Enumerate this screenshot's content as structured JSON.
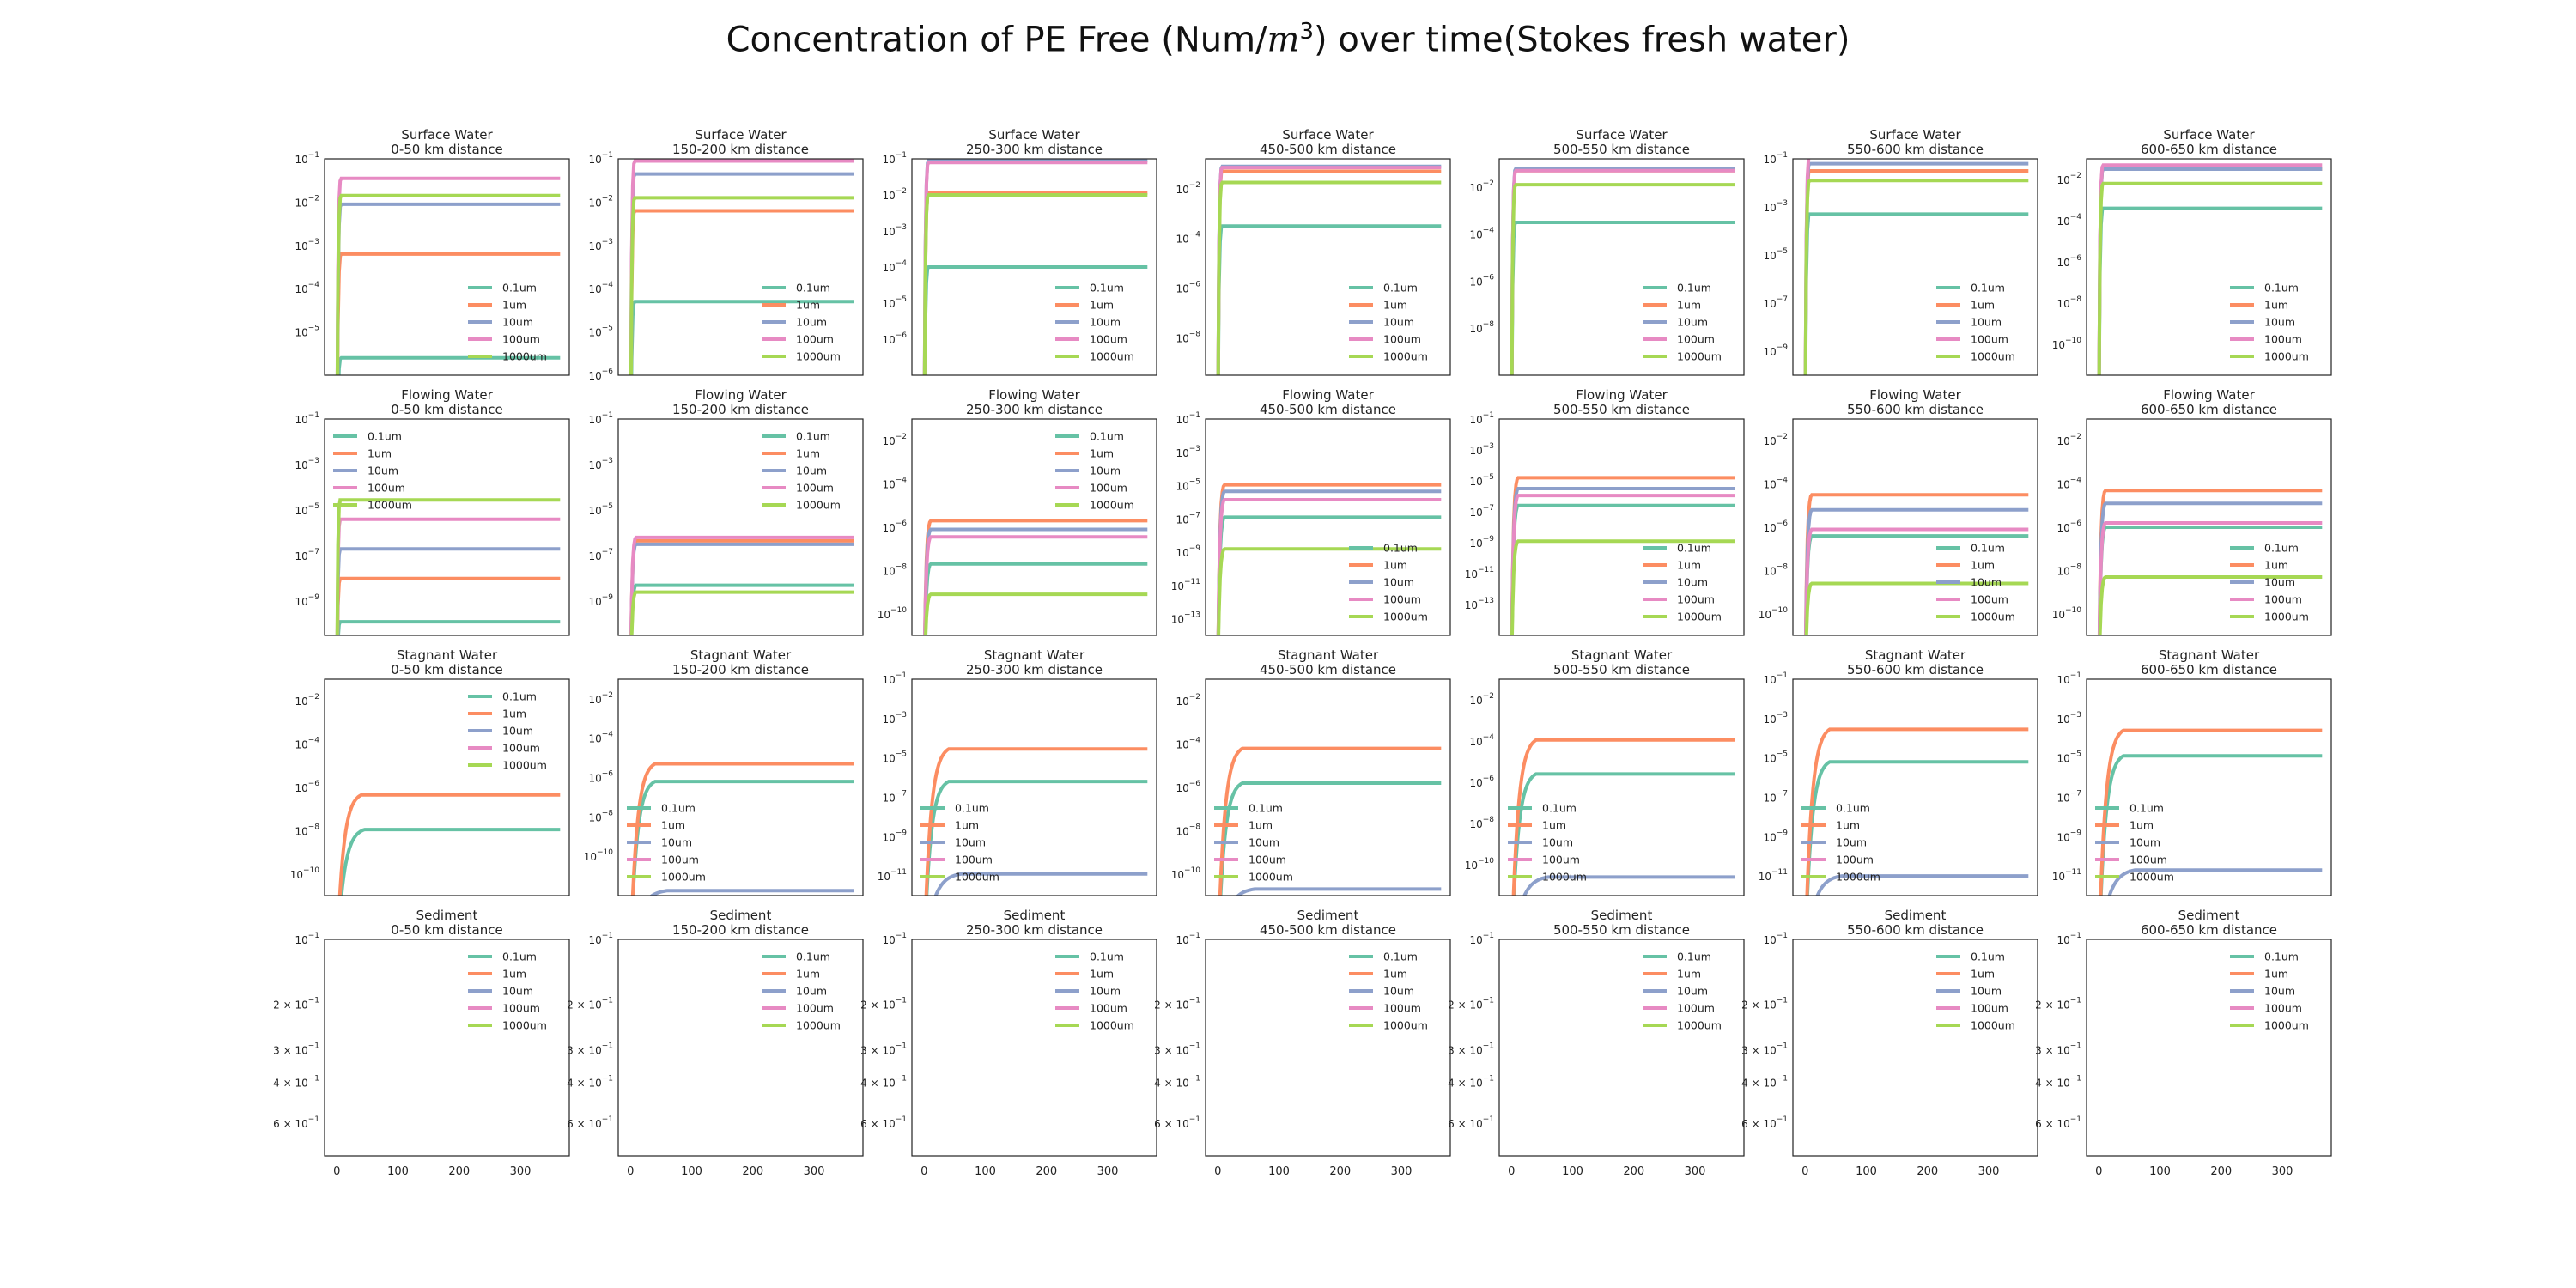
{
  "chart_data": {
    "type": "line",
    "title_prefix": "Concentration of PE Free (Num/",
    "title_unit": "m",
    "title_exp": "3",
    "title_suffix": ") over time(Stokes fresh water)",
    "legend": [
      "0.1um",
      "1um",
      "10um",
      "100um",
      "1000um"
    ],
    "colors": {
      "0.1um": "#66c2a5",
      "1um": "#fc8d62",
      "10um": "#8da0cb",
      "100um": "#e78ac3",
      "1000um": "#a6d854"
    },
    "xlim": [
      -20,
      380
    ],
    "xticks": [
      0,
      100,
      200,
      300
    ],
    "distances": [
      "0-50 km distance",
      "150-200 km distance",
      "250-300 km distance",
      "450-500 km distance",
      "500-550 km distance",
      "550-600 km distance",
      "600-650 km distance"
    ],
    "rows": [
      {
        "compartment": "Surface Water",
        "panels": [
          {
            "ylim": [
              -6,
              -1
            ],
            "yticks": [
              -5,
              -4,
              -3,
              -2,
              -1
            ],
            "legend_loc": "lower-right",
            "series": [
              {
                "name": "0.1um",
                "value": -5.6,
                "rise": 6
              },
              {
                "name": "1um",
                "value": -3.2,
                "rise": 6
              },
              {
                "name": "10um",
                "value": -2.05,
                "rise": 6
              },
              {
                "name": "100um",
                "value": -1.45,
                "rise": 6
              },
              {
                "name": "1000um",
                "value": -1.85,
                "rise": 6
              }
            ]
          },
          {
            "ylim": [
              -6,
              -1
            ],
            "yticks": [
              -6,
              -5,
              -4,
              -3,
              -2,
              -1
            ],
            "legend_loc": "lower-right",
            "series": [
              {
                "name": "0.1um",
                "value": -4.3,
                "rise": 6
              },
              {
                "name": "1um",
                "value": -2.2,
                "rise": 6
              },
              {
                "name": "10um",
                "value": -1.35,
                "rise": 6
              },
              {
                "name": "100um",
                "value": -1.05,
                "rise": 6
              },
              {
                "name": "1000um",
                "value": -1.9,
                "rise": 6
              }
            ]
          },
          {
            "ylim": [
              -7,
              -1
            ],
            "yticks": [
              -6,
              -5,
              -4,
              -3,
              -2,
              -1
            ],
            "legend_loc": "lower-right",
            "series": [
              {
                "name": "0.1um",
                "value": -4.0,
                "rise": 6
              },
              {
                "name": "1um",
                "value": -1.95,
                "rise": 6
              },
              {
                "name": "10um",
                "value": -1.05,
                "rise": 6
              },
              {
                "name": "100um",
                "value": -1.1,
                "rise": 6
              },
              {
                "name": "1000um",
                "value": -2.0,
                "rise": 6
              }
            ]
          },
          {
            "ylim": [
              -9.5,
              -0.8
            ],
            "yticks": [
              -8,
              -6,
              -4,
              -2
            ],
            "legend_loc": "lower-right",
            "series": [
              {
                "name": "0.1um",
                "value": -3.5,
                "rise": 6
              },
              {
                "name": "1um",
                "value": -1.3,
                "rise": 6
              },
              {
                "name": "10um",
                "value": -1.1,
                "rise": 6
              },
              {
                "name": "100um",
                "value": -1.15,
                "rise": 6
              },
              {
                "name": "1000um",
                "value": -1.75,
                "rise": 6
              }
            ]
          },
          {
            "ylim": [
              -10,
              -0.8
            ],
            "yticks": [
              -8,
              -6,
              -4,
              -2
            ],
            "legend_loc": "lower-right",
            "series": [
              {
                "name": "0.1um",
                "value": -3.5,
                "rise": 6
              },
              {
                "name": "1um",
                "value": -1.3,
                "rise": 6
              },
              {
                "name": "10um",
                "value": -1.2,
                "rise": 6
              },
              {
                "name": "100um",
                "value": -1.3,
                "rise": 6
              },
              {
                "name": "1000um",
                "value": -1.9,
                "rise": 6
              }
            ]
          },
          {
            "ylim": [
              -10,
              -1
            ],
            "yticks": [
              -9,
              -7,
              -5,
              -3,
              -1
            ],
            "legend_loc": "lower-right",
            "series": [
              {
                "name": "0.1um",
                "value": -3.3,
                "rise": 6
              },
              {
                "name": "1um",
                "value": -1.5,
                "rise": 6
              },
              {
                "name": "10um",
                "value": -1.2,
                "rise": 6
              },
              {
                "name": "100um",
                "value": -0.9,
                "rise": 6
              },
              {
                "name": "1000um",
                "value": -1.9,
                "rise": 6
              }
            ]
          },
          {
            "ylim": [
              -11.5,
              -1
            ],
            "yticks": [
              -10,
              -8,
              -6,
              -4,
              -2
            ],
            "legend_loc": "lower-right",
            "series": [
              {
                "name": "0.1um",
                "value": -3.4,
                "rise": 6
              },
              {
                "name": "1um",
                "value": -1.5,
                "rise": 6
              },
              {
                "name": "10um",
                "value": -1.5,
                "rise": 6
              },
              {
                "name": "100um",
                "value": -1.3,
                "rise": 6
              },
              {
                "name": "1000um",
                "value": -2.2,
                "rise": 6
              }
            ]
          }
        ]
      },
      {
        "compartment": "Flowing Water",
        "panels": [
          {
            "ylim": [
              -10.5,
              -1
            ],
            "yticks": [
              -9,
              -7,
              -5,
              -3,
              -1
            ],
            "legend_loc": "upper-left",
            "series": [
              {
                "name": "0.1um",
                "value": -9.9,
                "rise": 5
              },
              {
                "name": "1um",
                "value": -8.0,
                "rise": 5
              },
              {
                "name": "10um",
                "value": -6.7,
                "rise": 5
              },
              {
                "name": "100um",
                "value": -5.4,
                "rise": 5
              },
              {
                "name": "1000um",
                "value": -4.55,
                "rise": 5
              }
            ]
          },
          {
            "ylim": [
              -10.5,
              -1
            ],
            "yticks": [
              -9,
              -7,
              -5,
              -3,
              -1
            ],
            "legend_loc": "upper-right",
            "series": [
              {
                "name": "0.1um",
                "value": -8.3,
                "rise": 8
              },
              {
                "name": "1um",
                "value": -6.35,
                "rise": 8
              },
              {
                "name": "10um",
                "value": -6.5,
                "rise": 8
              },
              {
                "name": "100um",
                "value": -6.2,
                "rise": 8
              },
              {
                "name": "1000um",
                "value": -8.6,
                "rise": 8
              }
            ]
          },
          {
            "ylim": [
              -11,
              -1
            ],
            "yticks": [
              -10,
              -8,
              -6,
              -4,
              -2
            ],
            "legend_loc": "upper-right",
            "series": [
              {
                "name": "0.1um",
                "value": -7.7,
                "rise": 10
              },
              {
                "name": "1um",
                "value": -5.7,
                "rise": 10
              },
              {
                "name": "10um",
                "value": -6.1,
                "rise": 10
              },
              {
                "name": "100um",
                "value": -6.45,
                "rise": 10
              },
              {
                "name": "1000um",
                "value": -9.1,
                "rise": 10
              }
            ]
          },
          {
            "ylim": [
              -14,
              -1
            ],
            "yticks": [
              -13,
              -11,
              -9,
              -7,
              -5,
              -3,
              -1
            ],
            "legend_loc": "lower-right",
            "series": [
              {
                "name": "0.1um",
                "value": -6.9,
                "rise": 10
              },
              {
                "name": "1um",
                "value": -4.95,
                "rise": 10
              },
              {
                "name": "10um",
                "value": -5.35,
                "rise": 10
              },
              {
                "name": "100um",
                "value": -5.85,
                "rise": 10
              },
              {
                "name": "1000um",
                "value": -8.8,
                "rise": 10
              }
            ]
          },
          {
            "ylim": [
              -15,
              -1
            ],
            "yticks": [
              -13,
              -11,
              -9,
              -7,
              -5,
              -3,
              -1
            ],
            "legend_loc": "lower-right",
            "series": [
              {
                "name": "0.1um",
                "value": -6.6,
                "rise": 10
              },
              {
                "name": "1um",
                "value": -4.8,
                "rise": 10
              },
              {
                "name": "10um",
                "value": -5.5,
                "rise": 10
              },
              {
                "name": "100um",
                "value": -5.95,
                "rise": 10
              },
              {
                "name": "1000um",
                "value": -8.9,
                "rise": 10
              }
            ]
          },
          {
            "ylim": [
              -11,
              -1
            ],
            "yticks": [
              -10,
              -8,
              -6,
              -4,
              -2
            ],
            "legend_loc": "lower-right",
            "series": [
              {
                "name": "0.1um",
                "value": -6.4,
                "rise": 10
              },
              {
                "name": "1um",
                "value": -4.5,
                "rise": 10
              },
              {
                "name": "10um",
                "value": -5.2,
                "rise": 10
              },
              {
                "name": "100um",
                "value": -6.1,
                "rise": 10
              },
              {
                "name": "1000um",
                "value": -8.6,
                "rise": 10
              }
            ]
          },
          {
            "ylim": [
              -11,
              -1
            ],
            "yticks": [
              -10,
              -8,
              -6,
              -4,
              -2
            ],
            "legend_loc": "lower-right",
            "series": [
              {
                "name": "0.1um",
                "value": -6.0,
                "rise": 10
              },
              {
                "name": "1um",
                "value": -4.3,
                "rise": 10
              },
              {
                "name": "10um",
                "value": -4.9,
                "rise": 10
              },
              {
                "name": "100um",
                "value": -5.8,
                "rise": 10
              },
              {
                "name": "1000um",
                "value": -8.3,
                "rise": 10
              }
            ]
          }
        ]
      },
      {
        "compartment": "Stagnant Water",
        "panels": [
          {
            "ylim": [
              -11,
              -1
            ],
            "yticks": [
              -10,
              -8,
              -6,
              -4,
              -2
            ],
            "legend_loc": "upper-right",
            "series": [
              {
                "name": "0.1um",
                "value": -7.95,
                "rise": 45
              },
              {
                "name": "1um",
                "value": -6.35,
                "rise": 40
              }
            ]
          },
          {
            "ylim": [
              -12,
              -1
            ],
            "yticks": [
              -10,
              -8,
              -6,
              -4,
              -2
            ],
            "legend_loc": "lower-left",
            "series": [
              {
                "name": "0.1um",
                "value": -6.2,
                "rise": 40
              },
              {
                "name": "1um",
                "value": -5.3,
                "rise": 40
              },
              {
                "name": "10um",
                "value": -11.75,
                "rise": 60
              }
            ]
          },
          {
            "ylim": [
              -12,
              -1
            ],
            "yticks": [
              -11,
              -9,
              -7,
              -5,
              -3,
              -1
            ],
            "legend_loc": "lower-left",
            "series": [
              {
                "name": "0.1um",
                "value": -6.2,
                "rise": 40
              },
              {
                "name": "1um",
                "value": -4.55,
                "rise": 40
              },
              {
                "name": "10um",
                "value": -10.9,
                "rise": 60
              }
            ]
          },
          {
            "ylim": [
              -11,
              -1
            ],
            "yticks": [
              -10,
              -8,
              -6,
              -4,
              -2
            ],
            "legend_loc": "lower-left",
            "series": [
              {
                "name": "0.1um",
                "value": -5.8,
                "rise": 40
              },
              {
                "name": "1um",
                "value": -4.2,
                "rise": 40
              },
              {
                "name": "10um",
                "value": -10.7,
                "rise": 60
              }
            ]
          },
          {
            "ylim": [
              -11.5,
              -1
            ],
            "yticks": [
              -10,
              -8,
              -6,
              -4,
              -2
            ],
            "legend_loc": "lower-left",
            "series": [
              {
                "name": "0.1um",
                "value": -5.6,
                "rise": 40
              },
              {
                "name": "1um",
                "value": -3.95,
                "rise": 40
              },
              {
                "name": "10um",
                "value": -10.6,
                "rise": 60
              }
            ]
          },
          {
            "ylim": [
              -12,
              -1
            ],
            "yticks": [
              -11,
              -9,
              -7,
              -5,
              -3,
              -1
            ],
            "legend_loc": "lower-left",
            "series": [
              {
                "name": "0.1um",
                "value": -5.2,
                "rise": 40
              },
              {
                "name": "1um",
                "value": -3.55,
                "rise": 40
              },
              {
                "name": "10um",
                "value": -11.0,
                "rise": 60
              }
            ]
          },
          {
            "ylim": [
              -12,
              -1
            ],
            "yticks": [
              -11,
              -9,
              -7,
              -5,
              -3,
              -1
            ],
            "legend_loc": "lower-left",
            "series": [
              {
                "name": "0.1um",
                "value": -4.9,
                "rise": 40
              },
              {
                "name": "1um",
                "value": -3.6,
                "rise": 40
              },
              {
                "name": "10um",
                "value": -10.7,
                "rise": 60
              }
            ]
          }
        ]
      },
      {
        "compartment": "Sediment",
        "empty": true,
        "ytick_labels": [
          "10",
          "2 × 10",
          "3 × 10",
          "4 × 10",
          "6 × 10"
        ],
        "ytick_exp": "−1",
        "ytick_fracs": [
          0.0,
          0.3,
          0.51,
          0.66,
          0.85
        ],
        "panels": [
          {
            "legend_loc": "upper-right",
            "series": []
          },
          {
            "legend_loc": "upper-right",
            "series": []
          },
          {
            "legend_loc": "upper-right",
            "series": []
          },
          {
            "legend_loc": "upper-right",
            "series": []
          },
          {
            "legend_loc": "upper-right",
            "series": []
          },
          {
            "legend_loc": "upper-right",
            "series": []
          },
          {
            "legend_loc": "upper-right",
            "series": []
          }
        ]
      }
    ]
  }
}
